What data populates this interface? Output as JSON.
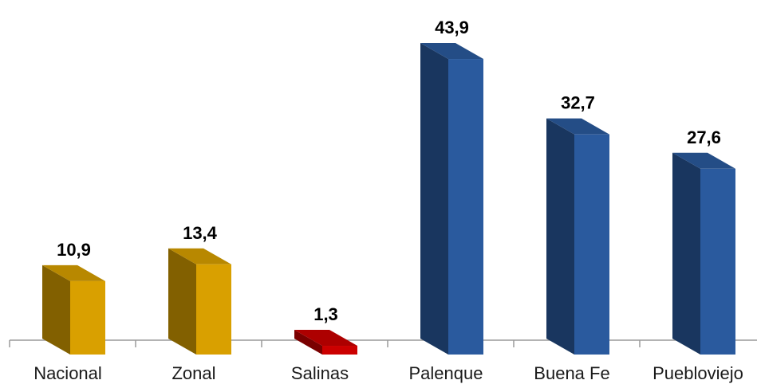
{
  "chart_data": {
    "type": "bar",
    "categories": [
      "Nacional",
      "Zonal",
      "Salinas",
      "Palenque",
      "Buena Fe",
      "Puebloviejo"
    ],
    "values": [
      10.9,
      13.4,
      1.3,
      43.9,
      32.7,
      27.6
    ],
    "value_labels": [
      "10,9",
      "13,4",
      "1,3",
      "43,9",
      "32,7",
      "27,6"
    ],
    "bar_colors": [
      "#d9a000",
      "#d9a000",
      "#cc0000",
      "#2a5a9e",
      "#2a5a9e",
      "#2a5a9e"
    ],
    "title": "",
    "xlabel": "",
    "ylabel": "",
    "ylim": [
      0,
      45
    ],
    "grid": false,
    "legend": "none",
    "style": "3d-column"
  }
}
